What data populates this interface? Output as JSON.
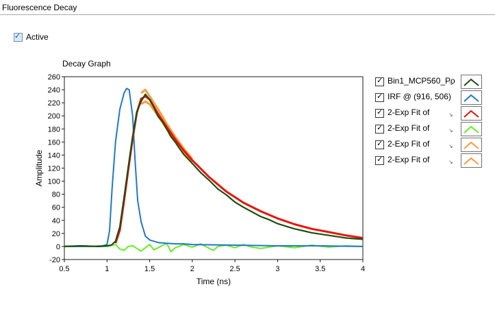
{
  "panel": {
    "title": "Fluorescence Decay"
  },
  "active": {
    "label": "Active",
    "checked": true
  },
  "graph": {
    "title": "Decay Graph"
  },
  "legend": {
    "items": [
      {
        "label": "Bin1_MCP560_Po",
        "color": "#1e4d12",
        "checked": true,
        "has_arrow": true
      },
      {
        "label": "IRF @ (916, 506)",
        "color": "#1f78c8",
        "checked": true,
        "has_arrow": false
      },
      {
        "label": "2-Exp Fit of",
        "color": "#e8140a",
        "checked": true,
        "has_arrow": true
      },
      {
        "label": "2-Exp Fit of",
        "color": "#66ee22",
        "checked": true,
        "has_arrow": true
      },
      {
        "label": "2-Exp Fit of",
        "color": "#ff9a3c",
        "checked": true,
        "has_arrow": true
      },
      {
        "label": "2-Exp Fit of",
        "color": "#ff9a3c",
        "checked": true,
        "has_arrow": true
      }
    ]
  },
  "chart_data": {
    "type": "line",
    "title": "Decay Graph",
    "xlabel": "Time (ns)",
    "ylabel": "Amplitude",
    "xlim": [
      0.5,
      4
    ],
    "ylim": [
      -20,
      260
    ],
    "xticks": [
      "0.5",
      "1",
      "1.5",
      "2",
      "2.5",
      "3",
      "3.5",
      "4"
    ],
    "yticks": [
      "-20",
      "0",
      "20",
      "40",
      "60",
      "80",
      "100",
      "120",
      "140",
      "160",
      "180",
      "200",
      "220",
      "240",
      "260"
    ],
    "grid": false,
    "series": [
      {
        "name": "Bin1_MCP560_Po",
        "color": "#1e4d12",
        "x": [
          0.5,
          0.7,
          0.9,
          1.0,
          1.05,
          1.1,
          1.15,
          1.2,
          1.25,
          1.3,
          1.35,
          1.4,
          1.45,
          1.5,
          1.55,
          1.6,
          1.65,
          1.7,
          1.75,
          1.8,
          1.85,
          1.9,
          2.0,
          2.1,
          2.2,
          2.3,
          2.4,
          2.5,
          2.6,
          2.7,
          2.8,
          2.9,
          3.0,
          3.1,
          3.2,
          3.3,
          3.4,
          3.5,
          3.6,
          3.7,
          3.8,
          3.9,
          4.0
        ],
        "y": [
          0,
          1,
          0,
          1,
          2,
          8,
          30,
          75,
          122,
          168,
          206,
          222,
          233,
          225,
          213,
          199,
          191,
          180,
          168,
          160,
          150,
          141,
          127,
          113,
          101,
          88,
          79,
          68,
          60,
          53,
          46,
          41,
          35,
          31,
          27,
          24,
          21,
          19,
          17,
          15,
          13,
          12,
          11
        ]
      },
      {
        "name": "IRF @ (916, 506)",
        "color": "#1f78c8",
        "x": [
          0.5,
          0.8,
          0.95,
          1.0,
          1.03,
          1.06,
          1.1,
          1.15,
          1.2,
          1.23,
          1.26,
          1.3,
          1.33,
          1.36,
          1.4,
          1.45,
          1.5,
          1.6,
          1.7,
          1.8,
          1.9,
          2.0,
          2.5,
          3.0,
          3.5,
          4.0
        ],
        "y": [
          0,
          0,
          1,
          3,
          24,
          90,
          160,
          210,
          235,
          242,
          240,
          200,
          130,
          70,
          38,
          16,
          10,
          6,
          5,
          4,
          4,
          3,
          2,
          1,
          1,
          0
        ]
      },
      {
        "name": "2-Exp Fit of",
        "color": "#e8140a",
        "x": [
          1.1,
          1.15,
          1.2,
          1.25,
          1.3,
          1.35,
          1.4,
          1.45,
          1.5,
          1.6,
          1.7,
          1.8,
          1.9,
          2.0,
          2.2,
          2.4,
          2.6,
          2.8,
          3.0,
          3.2,
          3.4,
          3.6,
          3.8,
          4.0
        ],
        "y": [
          5,
          25,
          70,
          118,
          165,
          205,
          226,
          230,
          225,
          203,
          183,
          164,
          147,
          132,
          106,
          84,
          67,
          54,
          43,
          34,
          27,
          22,
          17,
          13
        ]
      },
      {
        "name": "2-Exp Fit of",
        "color": "#66ee22",
        "x": [
          0.5,
          1.0,
          1.1,
          1.15,
          1.2,
          1.25,
          1.3,
          1.35,
          1.4,
          1.45,
          1.5,
          1.55,
          1.6,
          1.7,
          1.75,
          1.8,
          1.9,
          2.0,
          2.1,
          2.2,
          2.25,
          2.3,
          2.4,
          2.5,
          2.6,
          2.7,
          2.8,
          3.0,
          3.2,
          3.4,
          3.6,
          3.8,
          4.0
        ],
        "y": [
          0,
          0,
          3,
          -4,
          -6,
          0,
          1,
          -3,
          -7,
          -2,
          3,
          -5,
          -2,
          5,
          -8,
          -2,
          3,
          -1,
          4,
          -3,
          -6,
          0,
          2,
          -2,
          3,
          -1,
          -3,
          1,
          -2,
          2,
          -1,
          1,
          0
        ]
      },
      {
        "name": "2-Exp Fit of",
        "color": "#ff9a3c",
        "x": [
          1.4,
          1.45,
          1.5,
          1.6,
          1.7,
          1.8,
          1.9,
          2.0
        ],
        "y": [
          235,
          240,
          230,
          210,
          188,
          168,
          150,
          134
        ]
      },
      {
        "name": "2-Exp Fit of",
        "color": "#ff9a3c",
        "x": [
          1.4,
          1.45,
          1.5,
          1.6,
          1.7,
          1.8,
          1.9,
          2.0
        ],
        "y": [
          218,
          222,
          218,
          200,
          180,
          162,
          145,
          130
        ]
      }
    ]
  }
}
